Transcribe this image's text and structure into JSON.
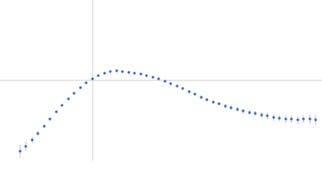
{
  "chart_data": {
    "type": "scatter",
    "x": [
      25,
      32,
      40,
      47,
      55,
      62,
      70,
      77,
      85,
      92,
      100,
      107,
      115,
      122,
      130,
      137,
      145,
      152,
      160,
      167,
      175,
      182,
      190,
      197,
      205,
      212,
      220,
      227,
      235,
      242,
      250,
      257,
      265,
      272,
      280,
      287,
      295,
      302,
      310,
      317,
      325,
      332,
      340,
      347,
      355,
      362,
      370,
      377,
      385,
      392
    ],
    "series": [
      {
        "color": "#3a66c4",
        "error_color": "#aac0e8",
        "values": [
          12,
          18,
          26,
          34,
          43,
          52,
          61,
          69,
          77,
          84,
          91,
          97,
          102,
          106,
          109,
          111,
          112,
          111,
          110,
          109,
          108,
          106,
          104,
          102,
          99,
          96,
          93,
          90,
          86,
          83,
          79,
          76,
          73,
          71,
          68,
          66,
          64,
          62,
          60,
          59,
          57,
          56,
          54,
          53,
          52,
          52,
          51,
          52,
          52,
          51
        ],
        "errors": [
          8,
          6,
          4,
          3,
          2,
          2,
          1,
          1,
          1,
          1,
          1,
          1,
          1,
          1,
          1,
          1,
          1,
          1,
          1,
          1,
          1,
          1,
          1,
          1,
          1,
          1,
          1,
          1,
          2,
          2,
          2,
          2,
          2,
          2,
          3,
          3,
          3,
          3,
          3,
          3,
          4,
          4,
          4,
          4,
          5,
          5,
          5,
          5,
          6,
          6
        ]
      }
    ],
    "xlim": [
      0,
      400
    ],
    "ylim": [
      0,
      200
    ],
    "crosshair_x": 115,
    "crosshair_y": 100
  }
}
